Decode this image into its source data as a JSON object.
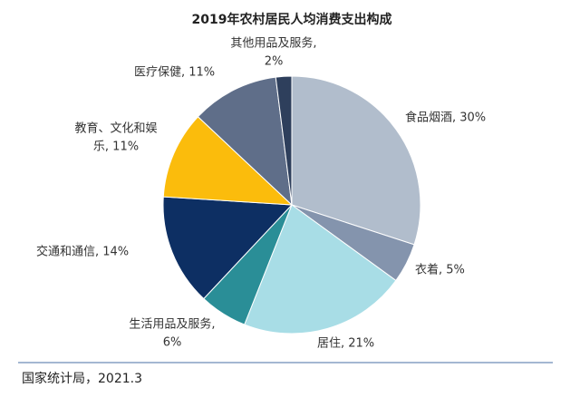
{
  "chart_data": {
    "type": "pie",
    "title": "2019年农村居民人均消费支出构成",
    "values": [
      30,
      5,
      21,
      6,
      14,
      11,
      11,
      2
    ],
    "value_labels": [
      [
        "食品烟酒, 30%"
      ],
      [
        "衣着, 5%"
      ],
      [
        "居住, 21%"
      ],
      [
        "生活用品及服务,",
        "6%"
      ],
      [
        "交通和通信, 14%"
      ],
      [
        "教育、文化和娱",
        "乐, 11%"
      ],
      [
        "医疗保健, 11%"
      ],
      [
        "其他用品及服务,",
        "2%"
      ]
    ],
    "colors": [
      "#b1bdcc",
      "#8494ad",
      "#a8dde6",
      "#2a8e97",
      "#0d2f63",
      "#fbbc0c",
      "#5f6e89",
      "#2e3f5c"
    ],
    "source": "国家统计局，2021.3"
  }
}
